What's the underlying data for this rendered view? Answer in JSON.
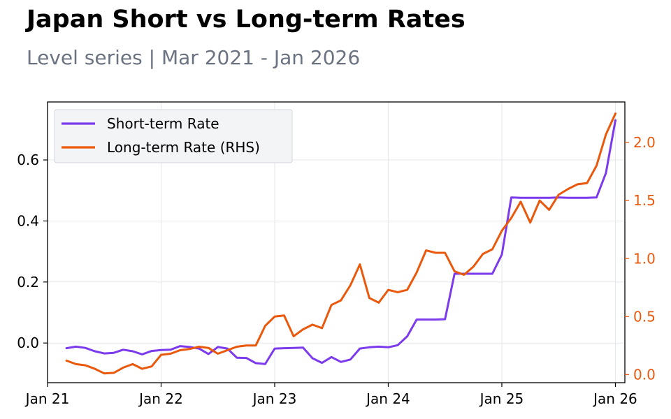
{
  "title": "Japan Short vs Long-term Rates",
  "subtitle": "Level series | Mar 2021 - Jan 2026",
  "colors": {
    "short": "#7c3aed",
    "long": "#ea580c",
    "grid": "#e5e7eb",
    "legend_bg": "#f3f4f6"
  },
  "chart_data": {
    "type": "line",
    "x_tick_labels": [
      "Jan 21",
      "Jan 22",
      "Jan 23",
      "Jan 24",
      "Jan 25",
      "Jan 26"
    ],
    "y_left_ticks": [
      "0.0",
      "0.2",
      "0.4",
      "0.6"
    ],
    "y_right_ticks": [
      "0.0",
      "0.5",
      "1.0",
      "1.5",
      "2.0"
    ],
    "y_left_range": [
      -0.13,
      0.79
    ],
    "y_right_range": [
      -0.07,
      2.35
    ],
    "x_range": [
      "2021-01",
      "2026-02"
    ],
    "grid": true,
    "legend_position": "top-left",
    "x": [
      "2021-03",
      "2021-04",
      "2021-05",
      "2021-06",
      "2021-07",
      "2021-08",
      "2021-09",
      "2021-10",
      "2021-11",
      "2021-12",
      "2022-01",
      "2022-02",
      "2022-03",
      "2022-04",
      "2022-05",
      "2022-06",
      "2022-07",
      "2022-08",
      "2022-09",
      "2022-10",
      "2022-11",
      "2022-12",
      "2023-01",
      "2023-02",
      "2023-03",
      "2023-04",
      "2023-05",
      "2023-06",
      "2023-07",
      "2023-08",
      "2023-09",
      "2023-10",
      "2023-11",
      "2023-12",
      "2024-01",
      "2024-02",
      "2024-03",
      "2024-04",
      "2024-05",
      "2024-06",
      "2024-07",
      "2024-08",
      "2024-09",
      "2024-10",
      "2024-11",
      "2024-12",
      "2025-01",
      "2025-02",
      "2025-03",
      "2025-04",
      "2025-05",
      "2025-06",
      "2025-07",
      "2025-08",
      "2025-09",
      "2025-10",
      "2025-11",
      "2025-12",
      "2026-01"
    ],
    "series": [
      {
        "name": "Short-term Rate",
        "axis": "left",
        "values": [
          -0.017,
          -0.012,
          -0.016,
          -0.027,
          -0.034,
          -0.032,
          -0.022,
          -0.027,
          -0.037,
          -0.026,
          -0.023,
          -0.022,
          -0.01,
          -0.013,
          -0.018,
          -0.036,
          -0.013,
          -0.018,
          -0.048,
          -0.049,
          -0.066,
          -0.069,
          -0.018,
          -0.017,
          -0.016,
          -0.015,
          -0.05,
          -0.065,
          -0.046,
          -0.062,
          -0.054,
          -0.018,
          -0.014,
          -0.012,
          -0.014,
          -0.007,
          0.022,
          0.077,
          0.077,
          0.077,
          0.078,
          0.227,
          0.227,
          0.227,
          0.227,
          0.227,
          0.29,
          0.477,
          0.476,
          0.476,
          0.476,
          0.476,
          0.477,
          0.476,
          0.476,
          0.476,
          0.477,
          0.557,
          0.73
        ]
      },
      {
        "name": "Long-term Rate (RHS)",
        "axis": "right",
        "values": [
          0.12,
          0.09,
          0.08,
          0.05,
          0.01,
          0.015,
          0.06,
          0.09,
          0.05,
          0.07,
          0.17,
          0.18,
          0.21,
          0.22,
          0.24,
          0.23,
          0.18,
          0.21,
          0.24,
          0.25,
          0.25,
          0.42,
          0.5,
          0.51,
          0.33,
          0.39,
          0.43,
          0.4,
          0.6,
          0.64,
          0.77,
          0.95,
          0.66,
          0.62,
          0.73,
          0.71,
          0.73,
          0.88,
          1.07,
          1.05,
          1.05,
          0.89,
          0.86,
          0.93,
          1.04,
          1.08,
          1.24,
          1.35,
          1.49,
          1.31,
          1.5,
          1.42,
          1.55,
          1.6,
          1.64,
          1.65,
          1.8,
          2.07,
          2.25
        ]
      }
    ]
  }
}
